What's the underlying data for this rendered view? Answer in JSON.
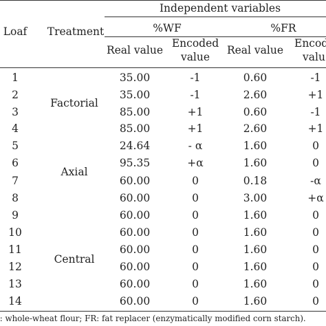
{
  "table": {
    "columns": {
      "loaf": "Loaf",
      "treatment": "Treatment",
      "independent_variables": "Independent variables",
      "wf": "%WF",
      "fr": "%FR",
      "real_value": "Real value",
      "encoded_value_line1": "Encoded",
      "encoded_value_line2": "value",
      "fr_encoded_line1": "Encod",
      "fr_encoded_line2": "valu"
    },
    "groups": [
      {
        "label": "Factorial",
        "rows": [
          1,
          2,
          3,
          4
        ]
      },
      {
        "label": "Axial",
        "rows": [
          5,
          6,
          7,
          8
        ]
      },
      {
        "label": "Central",
        "rows": [
          9,
          10,
          11,
          12,
          13,
          14
        ]
      }
    ],
    "rows": [
      {
        "loaf": "1",
        "wf_real": "35.00",
        "wf_enc": "-1",
        "fr_real": "0.60",
        "fr_enc": "-1"
      },
      {
        "loaf": "2",
        "wf_real": "35.00",
        "wf_enc": "-1",
        "fr_real": "2.60",
        "fr_enc": "+1"
      },
      {
        "loaf": "3",
        "wf_real": "85.00",
        "wf_enc": "+1",
        "fr_real": "0.60",
        "fr_enc": "-1"
      },
      {
        "loaf": "4",
        "wf_real": "85.00",
        "wf_enc": "+1",
        "fr_real": "2.60",
        "fr_enc": "+1"
      },
      {
        "loaf": "5",
        "wf_real": "24.64",
        "wf_enc": "- α",
        "fr_real": "1.60",
        "fr_enc": "0"
      },
      {
        "loaf": "6",
        "wf_real": "95.35",
        "wf_enc": "+α",
        "fr_real": "1.60",
        "fr_enc": "0"
      },
      {
        "loaf": "7",
        "wf_real": "60.00",
        "wf_enc": "0",
        "fr_real": "0.18",
        "fr_enc": "-α"
      },
      {
        "loaf": "8",
        "wf_real": "60.00",
        "wf_enc": "0",
        "fr_real": "3.00",
        "fr_enc": "+α"
      },
      {
        "loaf": "9",
        "wf_real": "60.00",
        "wf_enc": "0",
        "fr_real": "1.60",
        "fr_enc": "0"
      },
      {
        "loaf": "10",
        "wf_real": "60.00",
        "wf_enc": "0",
        "fr_real": "1.60",
        "fr_enc": "0"
      },
      {
        "loaf": "11",
        "wf_real": "60.00",
        "wf_enc": "0",
        "fr_real": "1.60",
        "fr_enc": "0"
      },
      {
        "loaf": "12",
        "wf_real": "60.00",
        "wf_enc": "0",
        "fr_real": "1.60",
        "fr_enc": "0"
      },
      {
        "loaf": "13",
        "wf_real": "60.00",
        "wf_enc": "0",
        "fr_real": "1.60",
        "fr_enc": "0"
      },
      {
        "loaf": "14",
        "wf_real": "60.00",
        "wf_enc": "0",
        "fr_real": "1.60",
        "fr_enc": "0"
      }
    ]
  },
  "footnote": "F: whole-wheat flour; FR: fat replacer (enzymatically modified corn starch)."
}
